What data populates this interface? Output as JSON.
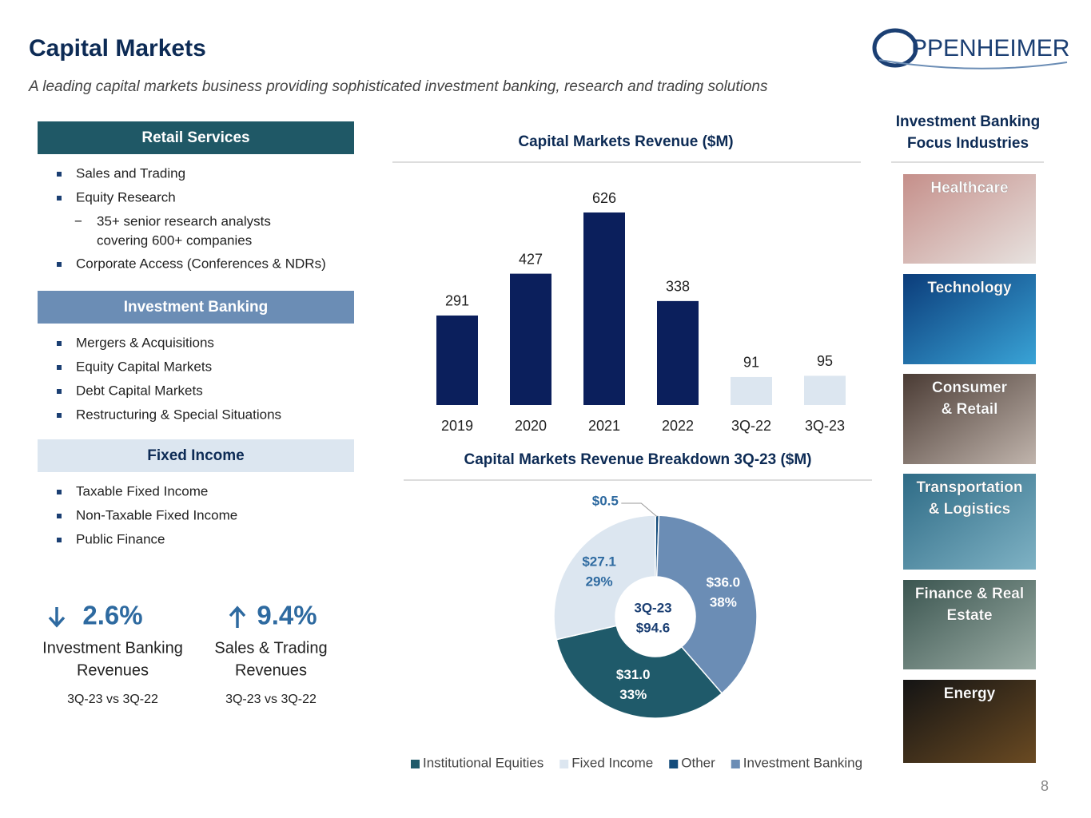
{
  "header": {
    "title": "Capital Markets",
    "subtitle": "A leading capital markets business providing sophisticated investment banking, research and trading solutions",
    "logo": "PPENHEIMER"
  },
  "sections": [
    {
      "title": "Retail Services",
      "items": [
        "Sales and Trading",
        "Equity Research",
        "Corporate Access (Conferences & NDRs)"
      ],
      "subitem": [
        "35+ senior research analysts",
        "covering 600+ companies"
      ]
    },
    {
      "title": "Investment Banking",
      "items": [
        "Mergers & Acquisitions",
        "Equity Capital Markets",
        "Debt Capital Markets",
        "Restructuring & Special Situations"
      ]
    },
    {
      "title": "Fixed Income",
      "items": [
        "Taxable Fixed Income",
        "Non-Taxable Fixed Income",
        "Public Finance"
      ]
    }
  ],
  "kpis": [
    {
      "value": "2.6%",
      "direction": "down",
      "label": [
        "Investment Banking",
        "Revenues"
      ],
      "period": "3Q-23 vs 3Q-22"
    },
    {
      "value": "9.4%",
      "direction": "up",
      "label": [
        "Sales & Trading",
        "Revenues"
      ],
      "period": "3Q-23 vs 3Q-22"
    }
  ],
  "industries": {
    "title": [
      "Investment Banking",
      "Focus Industries"
    ],
    "tiles": [
      [
        "Healthcare"
      ],
      [
        "Technology"
      ],
      [
        "Consumer",
        "& Retail"
      ],
      [
        "Transportation",
        "& Logistics"
      ],
      [
        "Finance & Real",
        "Estate"
      ],
      [
        "Energy"
      ]
    ]
  },
  "page_number": "8",
  "chart_data": [
    {
      "type": "bar",
      "title": "Capital Markets Revenue ($M)",
      "categories": [
        "2019",
        "2020",
        "2021",
        "2022",
        "3Q-22",
        "3Q-23"
      ],
      "values": [
        291,
        427,
        626,
        338,
        91,
        95
      ],
      "colors": [
        "#0b1f5c",
        "#0b1f5c",
        "#0b1f5c",
        "#0b1f5c",
        "#dce6f0",
        "#dce6f0"
      ]
    },
    {
      "type": "pie",
      "title": "Capital Markets Revenue Breakdown 3Q-23 ($M)",
      "center": [
        "3Q-23",
        "$94.6"
      ],
      "categories": [
        "Institutional Equities",
        "Fixed Income",
        "Other",
        "Investment Banking"
      ],
      "values": [
        31.0,
        27.1,
        0.5,
        36.0
      ],
      "value_labels": [
        "$31.0",
        "$27.1",
        "$0.5",
        "$36.0"
      ],
      "percents": [
        33,
        29,
        null,
        38
      ],
      "percent_labels": [
        "33%",
        "29%",
        null,
        "38%"
      ],
      "colors": [
        "#1f5a6a",
        "#dce6f0",
        "#134c7c",
        "#6b8db5"
      ]
    }
  ]
}
